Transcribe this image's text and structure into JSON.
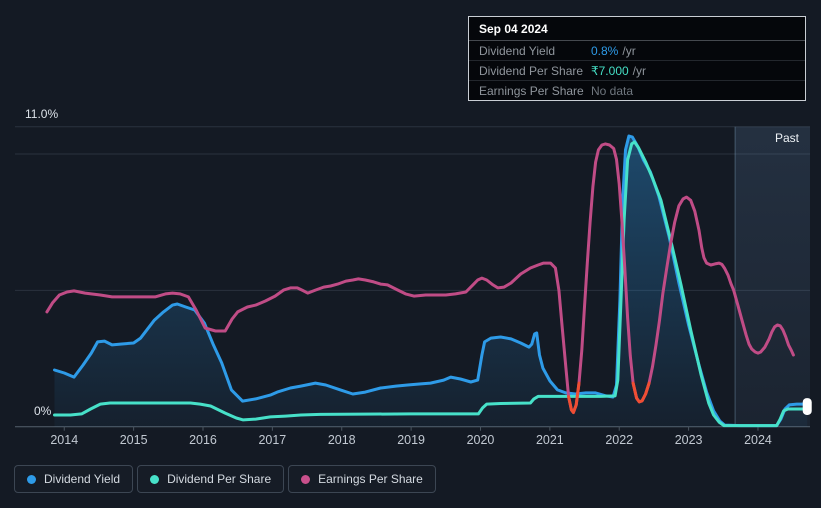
{
  "tooltip": {
    "date": "Sep 04 2024",
    "rows": [
      {
        "label": "Dividend Yield",
        "value": "0.8%",
        "suffix": "/yr",
        "value_color": "#2E9BE8"
      },
      {
        "label": "Dividend Per Share",
        "value": "₹7.000",
        "suffix": "/yr",
        "value_color": "#45DFC5"
      },
      {
        "label": "Earnings Per Share",
        "value": "No data",
        "suffix": "",
        "value_color": "#6F767E"
      }
    ]
  },
  "past_label": "Past",
  "legend": [
    {
      "label": "Dividend Yield",
      "color": "#2E9BE8"
    },
    {
      "label": "Dividend Per Share",
      "color": "#47E1C9"
    },
    {
      "label": "Earnings Per Share",
      "color": "#C9508C"
    }
  ],
  "colors": {
    "background": "#141a24",
    "grid": "#2a323e",
    "axis": "#55606c",
    "tick_text": "#c2c9d2",
    "negative": "#EF4E33",
    "area_fill": "#2E9BE8",
    "past_overlay": "#78a5d7",
    "end_marker": "#ffffff"
  },
  "chart_data": {
    "type": "line",
    "title": "Dividend history chart",
    "x_range": [
      2013.29,
      2024.75
    ],
    "x_ticks": [
      2014,
      2015,
      2016,
      2017,
      2018,
      2019,
      2020,
      2021,
      2022,
      2023,
      2024
    ],
    "today": 2023.67,
    "y_axis": {
      "top_label": "11.0%",
      "zero_label": "0%",
      "max": 11,
      "min": 0,
      "gridline_values": [
        11,
        10,
        5,
        0
      ]
    },
    "end_markers": [
      {
        "series": "dividend-yield",
        "x": 2024.71,
        "value": 0.83
      },
      {
        "series": "dividend-per-share",
        "x": 2024.71,
        "value": 0.65
      }
    ],
    "series": [
      {
        "id": "dividend-yield",
        "name": "Dividend Yield",
        "color": "#2E9BE8",
        "area": true,
        "points": [
          [
            2013.86,
            2.08
          ],
          [
            2014.0,
            1.97
          ],
          [
            2014.14,
            1.82
          ],
          [
            2014.27,
            2.26
          ],
          [
            2014.39,
            2.7
          ],
          [
            2014.48,
            3.11
          ],
          [
            2014.58,
            3.14
          ],
          [
            2014.69,
            3.0
          ],
          [
            2014.81,
            3.03
          ],
          [
            2015.0,
            3.07
          ],
          [
            2015.1,
            3.25
          ],
          [
            2015.3,
            3.91
          ],
          [
            2015.43,
            4.21
          ],
          [
            2015.56,
            4.46
          ],
          [
            2015.63,
            4.5
          ],
          [
            2015.75,
            4.39
          ],
          [
            2015.88,
            4.28
          ],
          [
            2016.02,
            3.8
          ],
          [
            2016.15,
            3.0
          ],
          [
            2016.27,
            2.34
          ],
          [
            2016.41,
            1.35
          ],
          [
            2016.57,
            0.94
          ],
          [
            2016.76,
            1.02
          ],
          [
            2016.97,
            1.16
          ],
          [
            2017.07,
            1.27
          ],
          [
            2017.26,
            1.42
          ],
          [
            2017.41,
            1.49
          ],
          [
            2017.62,
            1.6
          ],
          [
            2017.77,
            1.53
          ],
          [
            2017.98,
            1.35
          ],
          [
            2018.16,
            1.2
          ],
          [
            2018.34,
            1.27
          ],
          [
            2018.56,
            1.42
          ],
          [
            2018.78,
            1.49
          ],
          [
            2018.95,
            1.53
          ],
          [
            2019.14,
            1.57
          ],
          [
            2019.28,
            1.6
          ],
          [
            2019.47,
            1.71
          ],
          [
            2019.57,
            1.82
          ],
          [
            2019.71,
            1.75
          ],
          [
            2019.86,
            1.64
          ],
          [
            2019.96,
            1.71
          ],
          [
            2020.02,
            2.63
          ],
          [
            2020.06,
            3.11
          ],
          [
            2020.15,
            3.25
          ],
          [
            2020.29,
            3.29
          ],
          [
            2020.44,
            3.22
          ],
          [
            2020.58,
            3.07
          ],
          [
            2020.7,
            2.92
          ],
          [
            2020.74,
            3.03
          ],
          [
            2020.78,
            3.4
          ],
          [
            2020.81,
            3.44
          ],
          [
            2020.85,
            2.63
          ],
          [
            2020.9,
            2.15
          ],
          [
            2021.0,
            1.68
          ],
          [
            2021.11,
            1.35
          ],
          [
            2021.23,
            1.24
          ],
          [
            2021.37,
            1.2
          ],
          [
            2021.52,
            1.24
          ],
          [
            2021.66,
            1.24
          ],
          [
            2021.81,
            1.13
          ],
          [
            2021.91,
            1.09
          ],
          [
            2021.96,
            1.53
          ],
          [
            2022.01,
            4.65
          ],
          [
            2022.05,
            8.31
          ],
          [
            2022.09,
            10.15
          ],
          [
            2022.14,
            10.66
          ],
          [
            2022.19,
            10.62
          ],
          [
            2022.27,
            10.26
          ],
          [
            2022.35,
            9.78
          ],
          [
            2022.45,
            9.34
          ],
          [
            2022.57,
            8.46
          ],
          [
            2022.72,
            6.96
          ],
          [
            2022.86,
            5.27
          ],
          [
            2023.0,
            3.73
          ],
          [
            2023.15,
            2.26
          ],
          [
            2023.26,
            1.27
          ],
          [
            2023.36,
            0.58
          ],
          [
            2023.45,
            0.21
          ],
          [
            2023.52,
            0.06
          ],
          [
            2023.75,
            0.04
          ],
          [
            2024.04,
            0.04
          ],
          [
            2024.27,
            0.04
          ],
          [
            2024.33,
            0.28
          ],
          [
            2024.39,
            0.65
          ],
          [
            2024.45,
            0.8
          ],
          [
            2024.56,
            0.83
          ],
          [
            2024.71,
            0.83
          ]
        ]
      },
      {
        "id": "dividend-per-share",
        "name": "Dividend Per Share",
        "color": "#47E1C9",
        "area": false,
        "points": [
          [
            2013.86,
            0.43
          ],
          [
            2014.09,
            0.43
          ],
          [
            2014.25,
            0.47
          ],
          [
            2014.38,
            0.65
          ],
          [
            2014.52,
            0.83
          ],
          [
            2014.66,
            0.87
          ],
          [
            2015.82,
            0.87
          ],
          [
            2015.96,
            0.83
          ],
          [
            2016.11,
            0.76
          ],
          [
            2016.32,
            0.5
          ],
          [
            2016.48,
            0.32
          ],
          [
            2016.58,
            0.25
          ],
          [
            2016.76,
            0.28
          ],
          [
            2016.97,
            0.36
          ],
          [
            2017.19,
            0.39
          ],
          [
            2017.41,
            0.43
          ],
          [
            2017.69,
            0.45
          ],
          [
            2018.99,
            0.47
          ],
          [
            2019.97,
            0.47
          ],
          [
            2020.03,
            0.69
          ],
          [
            2020.09,
            0.83
          ],
          [
            2020.29,
            0.85
          ],
          [
            2020.72,
            0.87
          ],
          [
            2020.77,
            1.02
          ],
          [
            2020.83,
            1.11
          ],
          [
            2021.73,
            1.11
          ],
          [
            2021.94,
            1.13
          ],
          [
            2021.98,
            1.71
          ],
          [
            2022.02,
            4.28
          ],
          [
            2022.07,
            7.58
          ],
          [
            2022.12,
            9.78
          ],
          [
            2022.18,
            10.37
          ],
          [
            2022.22,
            10.44
          ],
          [
            2022.28,
            10.22
          ],
          [
            2022.38,
            9.71
          ],
          [
            2022.48,
            9.12
          ],
          [
            2022.6,
            8.31
          ],
          [
            2022.74,
            6.85
          ],
          [
            2022.89,
            5.2
          ],
          [
            2023.03,
            3.55
          ],
          [
            2023.18,
            1.9
          ],
          [
            2023.29,
            0.87
          ],
          [
            2023.36,
            0.43
          ],
          [
            2023.44,
            0.17
          ],
          [
            2023.51,
            0.04
          ],
          [
            2023.75,
            0.04
          ],
          [
            2024.27,
            0.04
          ],
          [
            2024.32,
            0.28
          ],
          [
            2024.37,
            0.58
          ],
          [
            2024.43,
            0.65
          ],
          [
            2024.71,
            0.65
          ]
        ]
      },
      {
        "id": "earnings-per-share",
        "name": "Earnings Per Share",
        "color": "#C04C86",
        "area": false,
        "negative_ranges": [
          [
            2021.25,
            2021.44
          ],
          [
            2022.18,
            2022.44
          ]
        ],
        "points": [
          [
            2013.75,
            4.21
          ],
          [
            2013.83,
            4.54
          ],
          [
            2013.93,
            4.83
          ],
          [
            2014.04,
            4.94
          ],
          [
            2014.14,
            4.98
          ],
          [
            2014.3,
            4.9
          ],
          [
            2014.52,
            4.83
          ],
          [
            2014.69,
            4.76
          ],
          [
            2015.02,
            4.76
          ],
          [
            2015.31,
            4.76
          ],
          [
            2015.46,
            4.87
          ],
          [
            2015.56,
            4.9
          ],
          [
            2015.67,
            4.87
          ],
          [
            2015.79,
            4.76
          ],
          [
            2015.9,
            4.28
          ],
          [
            2016.03,
            3.62
          ],
          [
            2016.18,
            3.51
          ],
          [
            2016.32,
            3.51
          ],
          [
            2016.42,
            3.95
          ],
          [
            2016.5,
            4.21
          ],
          [
            2016.64,
            4.39
          ],
          [
            2016.76,
            4.46
          ],
          [
            2016.9,
            4.61
          ],
          [
            2017.04,
            4.79
          ],
          [
            2017.16,
            5.01
          ],
          [
            2017.26,
            5.09
          ],
          [
            2017.36,
            5.09
          ],
          [
            2017.45,
            4.98
          ],
          [
            2017.51,
            4.9
          ],
          [
            2017.62,
            5.01
          ],
          [
            2017.74,
            5.12
          ],
          [
            2017.84,
            5.16
          ],
          [
            2017.94,
            5.23
          ],
          [
            2018.06,
            5.34
          ],
          [
            2018.16,
            5.38
          ],
          [
            2018.24,
            5.42
          ],
          [
            2018.34,
            5.38
          ],
          [
            2018.46,
            5.31
          ],
          [
            2018.56,
            5.23
          ],
          [
            2018.66,
            5.2
          ],
          [
            2018.81,
            5.01
          ],
          [
            2018.92,
            4.87
          ],
          [
            2019.04,
            4.79
          ],
          [
            2019.21,
            4.83
          ],
          [
            2019.5,
            4.83
          ],
          [
            2019.64,
            4.87
          ],
          [
            2019.79,
            4.94
          ],
          [
            2019.89,
            5.2
          ],
          [
            2019.96,
            5.38
          ],
          [
            2020.02,
            5.45
          ],
          [
            2020.09,
            5.38
          ],
          [
            2020.18,
            5.2
          ],
          [
            2020.25,
            5.09
          ],
          [
            2020.34,
            5.12
          ],
          [
            2020.44,
            5.27
          ],
          [
            2020.58,
            5.6
          ],
          [
            2020.72,
            5.82
          ],
          [
            2020.83,
            5.93
          ],
          [
            2020.91,
            6.0
          ],
          [
            2021.01,
            6.0
          ],
          [
            2021.08,
            5.82
          ],
          [
            2021.13,
            5.0
          ],
          [
            2021.18,
            3.6
          ],
          [
            2021.23,
            2.2
          ],
          [
            2021.27,
            1.1
          ],
          [
            2021.31,
            0.62
          ],
          [
            2021.34,
            0.52
          ],
          [
            2021.38,
            0.8
          ],
          [
            2021.42,
            1.6
          ],
          [
            2021.46,
            2.8
          ],
          [
            2021.5,
            4.4
          ],
          [
            2021.54,
            6.0
          ],
          [
            2021.58,
            7.5
          ],
          [
            2021.62,
            8.8
          ],
          [
            2021.66,
            9.7
          ],
          [
            2021.7,
            10.15
          ],
          [
            2021.75,
            10.33
          ],
          [
            2021.8,
            10.37
          ],
          [
            2021.86,
            10.33
          ],
          [
            2021.92,
            10.2
          ],
          [
            2021.96,
            9.8
          ],
          [
            2022.0,
            8.9
          ],
          [
            2022.04,
            7.5
          ],
          [
            2022.08,
            5.8
          ],
          [
            2022.12,
            4.0
          ],
          [
            2022.16,
            2.6
          ],
          [
            2022.2,
            1.6
          ],
          [
            2022.25,
            1.05
          ],
          [
            2022.29,
            0.91
          ],
          [
            2022.33,
            0.95
          ],
          [
            2022.38,
            1.2
          ],
          [
            2022.43,
            1.6
          ],
          [
            2022.48,
            2.2
          ],
          [
            2022.53,
            3.0
          ],
          [
            2022.58,
            3.9
          ],
          [
            2022.63,
            4.9
          ],
          [
            2022.69,
            5.9
          ],
          [
            2022.74,
            6.7
          ],
          [
            2022.8,
            7.5
          ],
          [
            2022.86,
            8.1
          ],
          [
            2022.92,
            8.35
          ],
          [
            2022.97,
            8.42
          ],
          [
            2023.03,
            8.3
          ],
          [
            2023.09,
            7.9
          ],
          [
            2023.15,
            7.2
          ],
          [
            2023.19,
            6.55
          ],
          [
            2023.22,
            6.2
          ],
          [
            2023.26,
            6.0
          ],
          [
            2023.32,
            5.93
          ],
          [
            2023.38,
            5.97
          ],
          [
            2023.44,
            6.0
          ],
          [
            2023.48,
            5.95
          ],
          [
            2023.52,
            5.8
          ],
          [
            2023.57,
            5.55
          ],
          [
            2023.61,
            5.25
          ],
          [
            2023.65,
            5.0
          ],
          [
            2023.71,
            4.45
          ],
          [
            2023.77,
            3.9
          ],
          [
            2023.83,
            3.35
          ],
          [
            2023.87,
            3.03
          ],
          [
            2023.91,
            2.85
          ],
          [
            2023.96,
            2.74
          ],
          [
            2024.0,
            2.7
          ],
          [
            2024.04,
            2.74
          ],
          [
            2024.1,
            2.92
          ],
          [
            2024.16,
            3.22
          ],
          [
            2024.2,
            3.47
          ],
          [
            2024.24,
            3.66
          ],
          [
            2024.28,
            3.73
          ],
          [
            2024.32,
            3.7
          ],
          [
            2024.36,
            3.55
          ],
          [
            2024.4,
            3.3
          ],
          [
            2024.44,
            3.0
          ],
          [
            2024.48,
            2.8
          ],
          [
            2024.51,
            2.63
          ]
        ]
      }
    ]
  }
}
